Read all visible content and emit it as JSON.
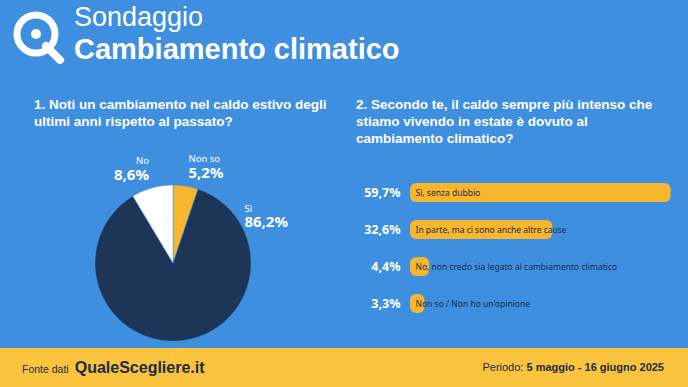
{
  "header": {
    "title": "Sondaggio",
    "subtitle": "Cambiamento climatico"
  },
  "chart_data": [
    {
      "type": "pie",
      "title": "1. Noti un cambiamento nel caldo estivo degli ultimi anni rispetto al passato?",
      "categories": [
        "Non so",
        "Sì",
        "No"
      ],
      "values": [
        5.2,
        86.2,
        8.6
      ],
      "value_labels": [
        "5,2%",
        "86,2%",
        "8,6%"
      ],
      "colors": [
        "#f6b62e",
        "#1d3557",
        "#ffffff"
      ],
      "data_labels": true
    },
    {
      "type": "bar",
      "orientation": "horizontal",
      "title": "2. Secondo te, il caldo sempre più intenso che stiamo vivendo in estate è dovuto al cambiamento climatico?",
      "categories": [
        "Sì, senza dubbio",
        "In parte, ma ci sono anche altre cause",
        "No, non credo sia legato al cambiamento climatico",
        "Non so / Non ho un'opinione"
      ],
      "values": [
        59.7,
        32.6,
        4.4,
        3.3
      ],
      "value_labels": [
        "59,7%",
        "32,6%",
        "4,4%",
        "3,3%"
      ],
      "color": "#f6b62e",
      "xlim": [
        0,
        60
      ],
      "tick_labels": false,
      "data_labels": true
    }
  ],
  "footer": {
    "source_label": "Fonte dati",
    "source": "QualeScegliere.it",
    "period_label": "Periodo:",
    "period": "5 maggio - 16 giugno 2025"
  }
}
